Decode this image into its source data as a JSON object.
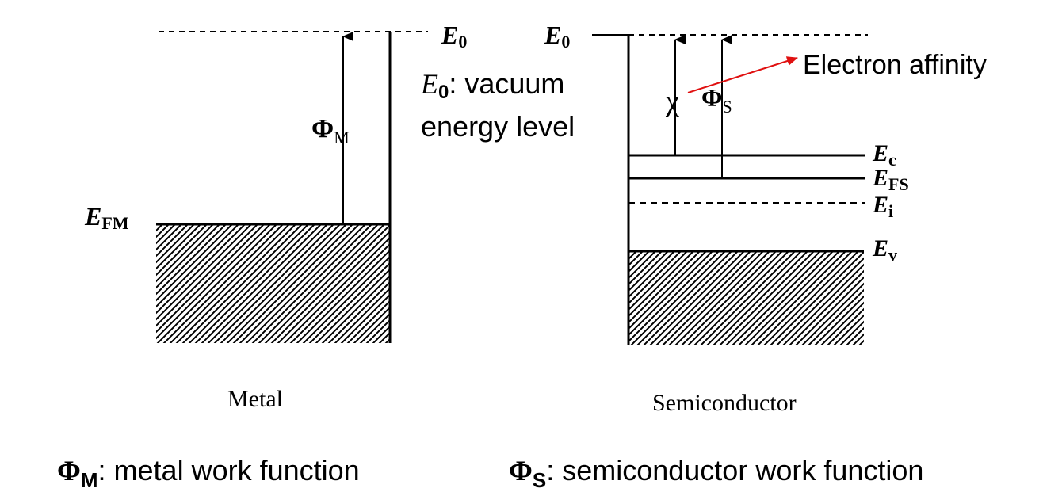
{
  "metal": {
    "vacuum_label": {
      "sym": "E",
      "sub": "0"
    },
    "work_function_label": {
      "sym": "Φ",
      "sub": "M"
    },
    "fermi_label": {
      "sym": "E",
      "sub": "FM"
    },
    "caption": "Metal"
  },
  "semiconductor": {
    "vacuum_label": {
      "sym": "E",
      "sub": "0"
    },
    "affinity_symbol": "χ",
    "work_function_label": {
      "sym": "Φ",
      "sub": "S"
    },
    "levels": [
      {
        "sym": "E",
        "sub": "c"
      },
      {
        "sym": "E",
        "sub": "FS"
      },
      {
        "sym": "E",
        "sub": "i"
      },
      {
        "sym": "E",
        "sub": "v"
      }
    ],
    "caption": "Semiconductor"
  },
  "annotations": {
    "electron_affinity": "Electron affinity",
    "vacuum_note": {
      "sym": "E",
      "sub": "0",
      "line1": ": vacuum",
      "line2": "energy level"
    },
    "metal_wf": {
      "sym": "Φ",
      "sub": "M",
      "text": ": metal work function"
    },
    "semi_wf": {
      "sym": "Φ",
      "sub": "S",
      "text": ": semiconductor work function"
    }
  },
  "colors": {
    "ink": "#000000",
    "arrow": "#e01010"
  }
}
